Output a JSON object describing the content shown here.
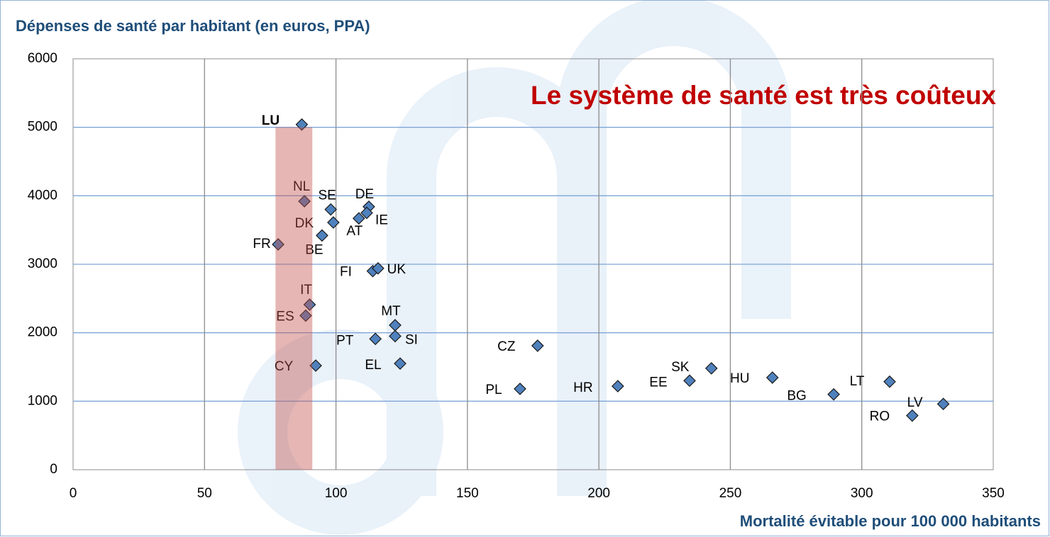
{
  "chart_data": {
    "type": "scatter",
    "title": "Dépenses de santé par habitant (en euros, PPA)",
    "x_label": "Mortalité évitable pour 100 000 habitants",
    "annotation": "Le système de santé est très coûteux",
    "labels": [
      "LU",
      "NL",
      "SE",
      "DE",
      "AT",
      "IE",
      "DK",
      "BE",
      "FR",
      "FI",
      "UK",
      "IT",
      "ES",
      "MT",
      "SI",
      "PT",
      "CY",
      "EL",
      "CZ",
      "PL",
      "HR",
      "EE",
      "SK",
      "HU",
      "BG",
      "LT",
      "RO",
      "LV"
    ],
    "x": [
      87,
      88,
      98,
      112.5,
      108.7,
      111.7,
      99,
      94.7,
      78,
      114,
      116,
      90,
      88.5,
      122.5,
      122.5,
      115,
      92.3,
      124.4,
      176.7,
      170,
      207.2,
      234.5,
      242.8,
      266,
      289.3,
      310.6,
      319.2,
      331
    ],
    "values": [
      5040,
      3920,
      3800,
      3840,
      3670,
      3750,
      3610,
      3420,
      3290,
      2900,
      2940,
      2410,
      2250,
      2110,
      1950,
      1910,
      1520,
      1550,
      1810,
      1180,
      1220,
      1300,
      1480,
      1345,
      1100,
      1285,
      790,
      960
    ],
    "color": "#4f81bd",
    "highlight": {
      "xlim": [
        77,
        91
      ],
      "ylim": [
        0,
        5000
      ],
      "color": "#c0504d"
    },
    "xlim": [
      0,
      350
    ],
    "xticks": [
      0,
      50,
      100,
      150,
      200,
      250,
      300,
      350
    ],
    "ylim": [
      0,
      6000
    ],
    "yticks": [
      0,
      1000,
      2000,
      3000,
      4000,
      5000,
      6000
    ],
    "grid": true
  }
}
